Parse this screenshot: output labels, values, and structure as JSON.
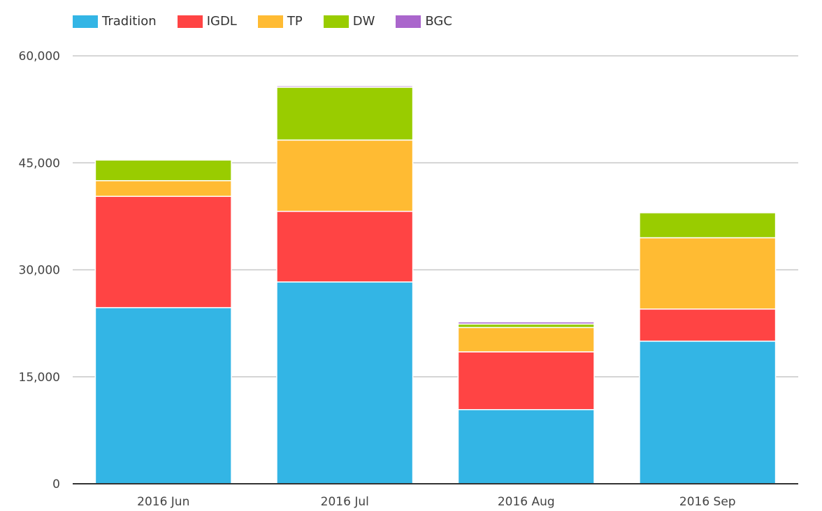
{
  "chart_data": {
    "type": "bar",
    "stacked": true,
    "categories": [
      "2016 Jun",
      "2016 Jul",
      "2016 Aug",
      "2016 Sep"
    ],
    "series": [
      {
        "name": "Tradition",
        "color": "#33b5e5",
        "values": [
          24700,
          28300,
          10400,
          20000
        ]
      },
      {
        "name": "IGDL",
        "color": "#ff4444",
        "values": [
          15600,
          9900,
          8100,
          4500
        ]
      },
      {
        "name": "TP",
        "color": "#ffbb33",
        "values": [
          2200,
          10000,
          3400,
          10000
        ]
      },
      {
        "name": "DW",
        "color": "#99cc00",
        "values": [
          2900,
          7400,
          500,
          3500
        ]
      },
      {
        "name": "BGC",
        "color": "#aa66cc",
        "values": [
          150,
          200,
          300,
          150
        ]
      }
    ],
    "y_ticks": [
      "0",
      "15,000",
      "30,000",
      "45,000",
      "60,000"
    ],
    "ylim": [
      0,
      60000
    ],
    "grid": true,
    "legend_position": "top-left",
    "title": "",
    "xlabel": "",
    "ylabel": ""
  }
}
